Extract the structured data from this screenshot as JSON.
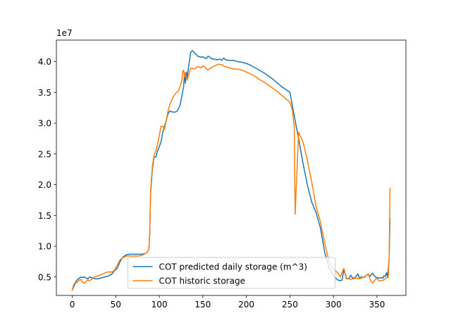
{
  "chart_data": {
    "type": "line",
    "title": "",
    "xlabel": "",
    "ylabel": "",
    "y_offset_text": "1e7",
    "xlim": [
      -18.25,
      383.25
    ],
    "ylim": [
      2.0,
      43.5
    ],
    "xticks": [
      0,
      50,
      100,
      150,
      200,
      250,
      300,
      350
    ],
    "yticks": [
      5.0,
      10.0,
      15.0,
      20.0,
      25.0,
      30.0,
      35.0,
      40.0
    ],
    "ytick_labels": [
      "0.5",
      "1.0",
      "1.5",
      "2.0",
      "2.5",
      "3.0",
      "3.5",
      "4.0"
    ],
    "legend": {
      "position": "lower-center"
    },
    "series": [
      {
        "name": "COT predicted daily storage (m^3)",
        "color": "#1f77b4",
        "x": [
          0,
          2,
          4,
          6,
          8,
          10,
          12,
          14,
          16,
          18,
          20,
          22,
          24,
          26,
          30,
          35,
          40,
          45,
          48,
          52,
          55,
          58,
          62,
          66,
          70,
          75,
          80,
          84,
          86,
          88,
          89,
          90,
          92,
          94,
          96,
          98,
          100,
          102,
          104,
          106,
          108,
          110,
          112,
          115,
          118,
          120,
          122,
          124,
          126,
          128,
          129,
          130,
          131,
          132,
          133,
          134,
          135,
          136,
          138,
          140,
          142,
          144,
          146,
          148,
          150,
          152,
          154,
          156,
          158,
          160,
          162,
          164,
          166,
          170,
          172,
          174,
          176,
          180,
          185,
          190,
          195,
          200,
          205,
          210,
          215,
          220,
          225,
          230,
          235,
          240,
          245,
          250,
          255,
          260,
          265,
          270,
          275,
          280,
          285,
          290,
          295,
          300,
          305,
          308,
          310,
          312,
          315,
          318,
          320,
          322,
          325,
          328,
          330,
          332,
          335,
          338,
          340,
          342,
          345,
          348,
          350,
          352,
          355,
          357,
          358,
          359,
          360,
          361,
          362,
          363,
          364,
          365
        ],
        "values": [
          2.9,
          3.5,
          4.2,
          4.6,
          4.8,
          5.0,
          4.9,
          5.0,
          4.8,
          4.7,
          5.0,
          4.9,
          4.8,
          4.7,
          4.7,
          4.9,
          5.1,
          5.4,
          5.9,
          6.5,
          7.5,
          8.2,
          8.6,
          8.7,
          8.7,
          8.7,
          8.7,
          8.8,
          9.0,
          9.5,
          12.0,
          18.5,
          22.5,
          24.5,
          24.5,
          25.5,
          26.2,
          27.0,
          28.5,
          29.5,
          30.5,
          31.5,
          32.0,
          31.8,
          31.8,
          31.9,
          32.3,
          33.0,
          34.5,
          36.0,
          38.2,
          36.5,
          38.3,
          37.5,
          38.5,
          39.5,
          40.5,
          41.5,
          41.8,
          41.5,
          41.2,
          40.9,
          40.8,
          40.7,
          40.8,
          40.6,
          40.5,
          40.9,
          40.7,
          40.5,
          40.4,
          40.4,
          40.3,
          40.4,
          40.2,
          40.6,
          40.3,
          40.2,
          40.2,
          40.0,
          39.9,
          39.7,
          39.4,
          39.0,
          38.6,
          38.2,
          37.7,
          37.2,
          36.6,
          36.0,
          35.5,
          35.0,
          31.2,
          27.5,
          23.5,
          20.0,
          17.2,
          15.5,
          13.0,
          9.0,
          6.5,
          5.2,
          4.5,
          4.4,
          4.5,
          6.2,
          4.7,
          4.8,
          5.3,
          4.8,
          4.9,
          5.5,
          4.8,
          5.0,
          4.9,
          5.3,
          5.4,
          5.1,
          5.6,
          5.0,
          4.9,
          4.8,
          4.9,
          4.8,
          5.2,
          5.1,
          5.2,
          5.7,
          5.1,
          6.2,
          8.0,
          14.5
        ]
      },
      {
        "name": "COT historic storage",
        "color": "#ff7f0e",
        "x": [
          0,
          2,
          4,
          6,
          8,
          10,
          12,
          14,
          16,
          18,
          20,
          22,
          24,
          26,
          28,
          30,
          35,
          40,
          45,
          48,
          52,
          55,
          58,
          62,
          66,
          70,
          75,
          80,
          84,
          86,
          88,
          89,
          90,
          92,
          94,
          96,
          98,
          100,
          102,
          104,
          106,
          108,
          110,
          112,
          115,
          118,
          120,
          122,
          124,
          126,
          127,
          128,
          129,
          130,
          131,
          132,
          133,
          134,
          135,
          136,
          138,
          140,
          142,
          144,
          146,
          148,
          150,
          152,
          154,
          156,
          158,
          160,
          162,
          165,
          168,
          170,
          172,
          174,
          176,
          180,
          185,
          190,
          195,
          200,
          205,
          210,
          215,
          220,
          225,
          230,
          235,
          240,
          245,
          250,
          253,
          254,
          255,
          256,
          260,
          265,
          270,
          275,
          280,
          285,
          290,
          295,
          300,
          305,
          308,
          310,
          312,
          315,
          320,
          325,
          330,
          335,
          337,
          340,
          343,
          345,
          348,
          350,
          352,
          355,
          358,
          360,
          361,
          362,
          363,
          364,
          365
        ],
        "values": [
          2.9,
          3.9,
          4.0,
          4.2,
          4.5,
          4.6,
          4.1,
          4.0,
          4.3,
          4.5,
          4.4,
          4.6,
          4.8,
          5.0,
          5.1,
          5.2,
          5.5,
          5.8,
          5.8,
          6.0,
          7.0,
          7.8,
          8.1,
          8.4,
          8.4,
          8.4,
          8.4,
          8.5,
          8.8,
          9.0,
          9.5,
          12.0,
          19.0,
          23.0,
          24.8,
          25.5,
          26.5,
          28.0,
          29.5,
          29.5,
          29.0,
          30.5,
          32.0,
          33.0,
          34.0,
          34.7,
          35.0,
          35.3,
          36.0,
          37.0,
          38.5,
          38.6,
          37.5,
          38.0,
          37.5,
          37.0,
          37.5,
          38.0,
          38.5,
          38.9,
          38.9,
          38.8,
          39.0,
          39.2,
          39.1,
          39.0,
          39.3,
          39.2,
          38.8,
          38.6,
          38.9,
          39.0,
          39.2,
          39.4,
          39.6,
          39.5,
          39.5,
          39.3,
          39.2,
          39.0,
          38.8,
          38.8,
          38.6,
          38.3,
          38.0,
          37.6,
          37.1,
          36.7,
          36.2,
          35.7,
          35.2,
          34.6,
          34.0,
          33.4,
          32.0,
          30.5,
          29.7,
          15.2,
          28.5,
          27.0,
          24.0,
          20.5,
          16.5,
          14.0,
          10.5,
          7.5,
          6.2,
          5.7,
          5.0,
          5.8,
          6.4,
          4.8,
          4.6,
          4.8,
          4.7,
          5.0,
          5.2,
          5.5,
          4.3,
          4.0,
          4.6,
          4.8,
          4.4,
          4.4,
          4.5,
          4.8,
          4.9,
          4.9,
          5.0,
          8.0,
          19.4
        ]
      }
    ]
  }
}
